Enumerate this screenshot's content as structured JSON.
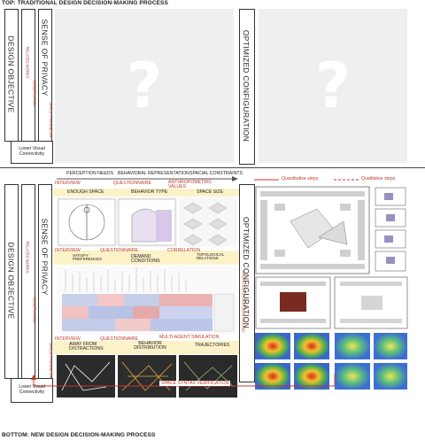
{
  "top": {
    "title": "TOP: TRADITIONAL DESIGN DECISION-MAKING PROCESS",
    "design_objective": "DESIGN OBJECTIVE",
    "sense_of_privacy": "SENSE OF PRIVACY",
    "related_works": "RELATED WORKS",
    "observation": "OBSERVATION",
    "space_parameter": "SPACE PARAMETER",
    "lower_visual": "Lower Visual Connectivity",
    "optimized": "OPTIMIZED CONFIGURATION",
    "qmark": "?"
  },
  "bottom": {
    "title": "BOTTOM: NEW DESIGN DECISION-MAKING PROCESS",
    "perception_needs": "PERCEPTION NEEDS",
    "behavioral_representation": "BEHAVIORAL REPRESENTATION",
    "spacial_constraints": "SPACIAL CONSTRAINTS",
    "quantitative_steps": "Quantitative steps",
    "qualitative_steps": "Qualitative steps",
    "design_objective": "DESIGN OBJECTIVE",
    "sense_of_privacy": "SENSE OF PRIVACY",
    "related_works": "RELATED WORKS",
    "observation": "OBSERVATION",
    "space_parameter": "SPACE PARAMETER",
    "lower_visual": "Lower Visual Connectivity",
    "optimized": "OPTIMIZED CONFIGURATION",
    "architects_decision": "ARCHITECTS' DECISION MAKING",
    "row1": {
      "interview": "INTERVIEW",
      "questionnaire": "QUESTIONNAIRE",
      "anthropometric": "ANTHROPOMETRIC VALUES",
      "enough_space": "ENOUGH SPACE",
      "behavior_type": "BEHAVIOR TYPE",
      "space_size": "SPACE SIZE"
    },
    "row2": {
      "interview": "INTERVIEW",
      "questionnaire": "QUESTIONNAIRE",
      "correlation": "CORRELATION",
      "satisfy_preferences": "SATISFY PREFERENCES",
      "demand_conditions": "DEMAND CONDITIONS",
      "topological_relations": "TOPOLOGICAL RELATIONS"
    },
    "row3": {
      "interview": "INTERVIEW",
      "questionnaire": "QUESTIONNAIRE",
      "multi_agent": "MULTI-AGENT SIMULATION",
      "away_from_distractions": "AWAY FROM DISTRACTIONS",
      "behavior_distribution": "BEHAVIOR DISTRIBUTION",
      "trajectories": "TRAJECTORIES"
    },
    "space_syntax": "SPACE SYNTAX VERIFICATION"
  },
  "colors": {
    "accent_red": "#c0392b",
    "band_yellow": "#fcf2c8",
    "panel_gray": "#efefef"
  }
}
